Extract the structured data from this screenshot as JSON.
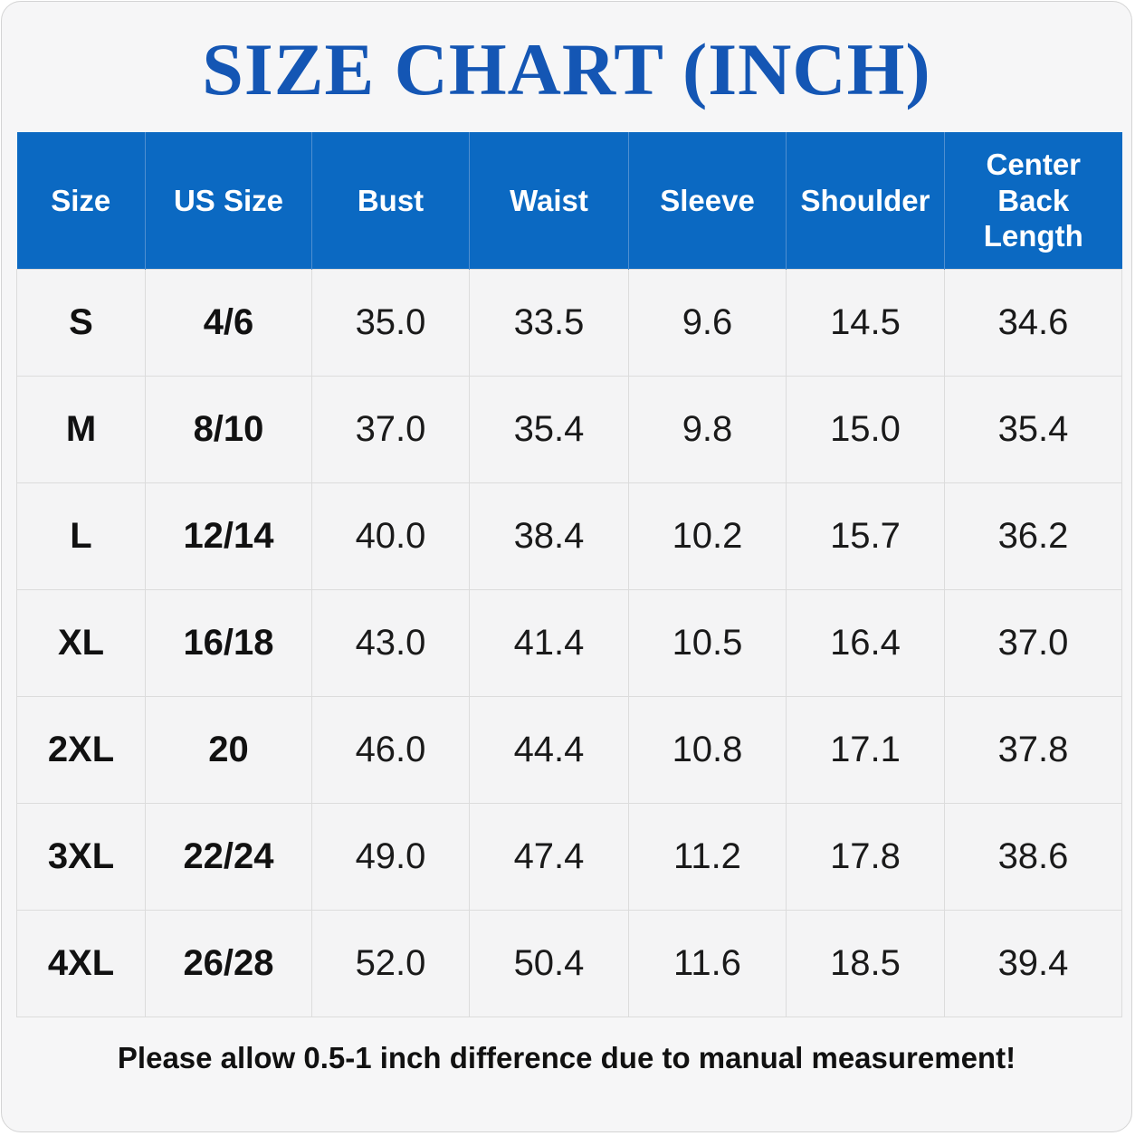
{
  "title": "SIZE CHART (INCH)",
  "table": {
    "headers": [
      "Size",
      "US Size",
      "Bust",
      "Waist",
      "Sleeve",
      "Shoulder",
      "Center Back Length"
    ],
    "rows": [
      [
        "S",
        "4/6",
        "35.0",
        "33.5",
        "9.6",
        "14.5",
        "34.6"
      ],
      [
        "M",
        "8/10",
        "37.0",
        "35.4",
        "9.8",
        "15.0",
        "35.4"
      ],
      [
        "L",
        "12/14",
        "40.0",
        "38.4",
        "10.2",
        "15.7",
        "36.2"
      ],
      [
        "XL",
        "16/18",
        "43.0",
        "41.4",
        "10.5",
        "16.4",
        "37.0"
      ],
      [
        "2XL",
        "20",
        "46.0",
        "44.4",
        "10.8",
        "17.1",
        "37.8"
      ],
      [
        "3XL",
        "22/24",
        "49.0",
        "47.4",
        "11.2",
        "17.8",
        "38.6"
      ],
      [
        "4XL",
        "26/28",
        "52.0",
        "50.4",
        "11.6",
        "18.5",
        "39.4"
      ]
    ]
  },
  "note": "Please allow 0.5-1 inch difference due to manual measurement!"
}
